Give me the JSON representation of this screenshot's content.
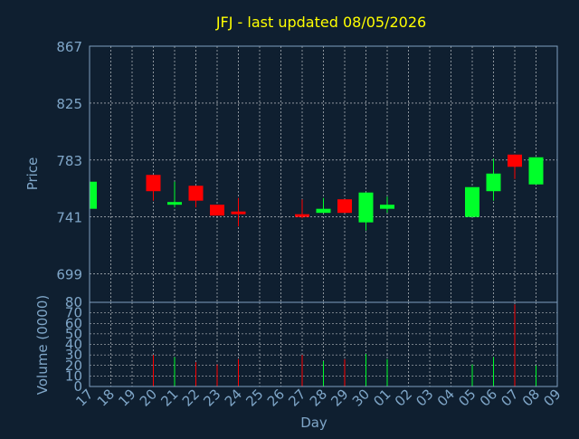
{
  "colors": {
    "background": "#0f1f30",
    "title": "#ffff00",
    "axis_text": "#7fa6c8",
    "up": "#00ff2a",
    "down": "#ff0000",
    "grid": "#ffffff",
    "frame": "#7f9fbf"
  },
  "chart_data": {
    "type": "candlestick",
    "title": "JFJ - last updated 08/05/2026",
    "xlabel": "Day",
    "price_panel": {
      "ylabel": "Price",
      "ylim": [
        678,
        867
      ],
      "yticks": [
        699,
        741,
        783,
        825,
        867
      ],
      "grid": true
    },
    "volume_panel": {
      "ylabel": "Volume (0000)",
      "ylim": [
        0,
        80
      ],
      "yticks": [
        0,
        10,
        20,
        30,
        40,
        50,
        60,
        70,
        80
      ],
      "grid": true
    },
    "x_tick_labels": [
      "17",
      "18",
      "19",
      "20",
      "21",
      "22",
      "23",
      "24",
      "25",
      "26",
      "27",
      "28",
      "29",
      "30",
      "01",
      "02",
      "03",
      "04",
      "05",
      "06",
      "07",
      "08",
      "09"
    ],
    "candles": [
      {
        "x": "17",
        "open": 747,
        "close": 767,
        "high": 767,
        "low": 747,
        "volume": 0
      },
      {
        "x": "20",
        "open": 772,
        "close": 760,
        "high": 772,
        "low": 753,
        "volume": 30
      },
      {
        "x": "21",
        "open": 751,
        "close": 752,
        "high": 767,
        "low": 748,
        "volume": 28
      },
      {
        "x": "22",
        "open": 764,
        "close": 753,
        "high": 764,
        "low": 748,
        "volume": 23
      },
      {
        "x": "23",
        "open": 750,
        "close": 742,
        "high": 750,
        "low": 742,
        "volume": 21
      },
      {
        "x": "24",
        "open": 745,
        "close": 743,
        "high": 755,
        "low": 734,
        "volume": 26
      },
      {
        "x": "27",
        "open": 743,
        "close": 741,
        "high": 754,
        "low": 740,
        "volume": 30
      },
      {
        "x": "28",
        "open": 744,
        "close": 747,
        "high": 755,
        "low": 744,
        "volume": 24
      },
      {
        "x": "29",
        "open": 754,
        "close": 744,
        "high": 754,
        "low": 744,
        "volume": 26
      },
      {
        "x": "30",
        "open": 737,
        "close": 759,
        "high": 759,
        "low": 731,
        "volume": 31
      },
      {
        "x": "01",
        "open": 747,
        "close": 750,
        "high": 756,
        "low": 744,
        "volume": 26
      },
      {
        "x": "05",
        "open": 741,
        "close": 763,
        "high": 763,
        "low": 741,
        "volume": 21
      },
      {
        "x": "06",
        "open": 760,
        "close": 773,
        "high": 784,
        "low": 753,
        "volume": 28
      },
      {
        "x": "07",
        "open": 787,
        "close": 778,
        "high": 787,
        "low": 769,
        "volume": 78
      },
      {
        "x": "08",
        "open": 765,
        "close": 785,
        "high": 785,
        "low": 765,
        "volume": 20
      }
    ]
  }
}
